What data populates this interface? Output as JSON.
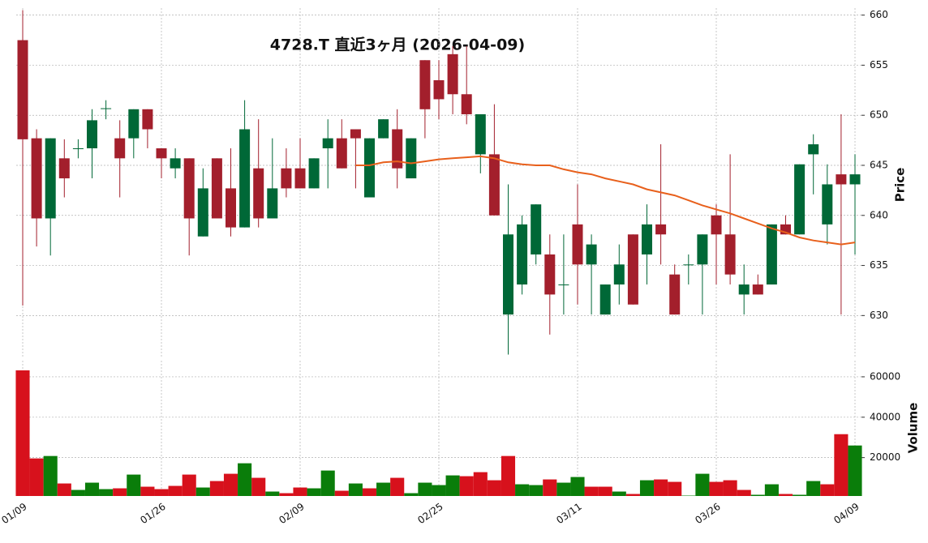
{
  "chart_data": {
    "type": "candlestick",
    "title": "4728.T  直近3ヶ月 (2026-04-09)",
    "ylabel": "Price",
    "categories": [
      "01/09",
      null,
      null,
      null,
      null,
      null,
      null,
      null,
      null,
      null,
      "01/26",
      null,
      null,
      null,
      null,
      null,
      null,
      null,
      null,
      null,
      "02/09",
      null,
      null,
      null,
      null,
      null,
      null,
      null,
      null,
      null,
      "02/25",
      null,
      null,
      null,
      null,
      null,
      null,
      null,
      null,
      null,
      "03/11",
      null,
      null,
      null,
      null,
      null,
      null,
      null,
      null,
      null,
      "03/26",
      null,
      null,
      null,
      null,
      null,
      null,
      null,
      null,
      null,
      "04/09"
    ],
    "open": [
      657.5,
      647.7,
      639.7,
      645.7,
      646.7,
      646.7,
      650.7,
      647.7,
      647.7,
      650.6,
      646.7,
      644.7,
      645.7,
      637.9,
      645.7,
      642.7,
      638.8,
      644.7,
      639.7,
      644.7,
      644.7,
      642.7,
      646.7,
      647.7,
      648.6,
      641.8,
      647.7,
      648.6,
      643.7,
      655.5,
      653.5,
      656.1,
      652.1,
      646.1,
      646.1,
      630.1,
      633.1,
      636.1,
      636.1,
      633.1,
      639.1,
      635.1,
      630.1,
      633.1,
      638.1,
      636.1,
      639.1,
      634.1,
      635.1,
      635.1,
      640.0,
      638.1,
      632.1,
      633.1,
      633.1,
      639.1,
      638.1,
      646.1,
      639.1,
      644.1,
      643.1
    ],
    "high": [
      660.5,
      648.6,
      647.7,
      647.6,
      647.6,
      650.6,
      651.5,
      649.5,
      650.6,
      650.6,
      646.7,
      646.7,
      645.7,
      644.7,
      645.7,
      646.7,
      651.5,
      649.6,
      647.7,
      646.7,
      647.7,
      645.7,
      649.6,
      649.6,
      648.6,
      647.7,
      649.6,
      650.6,
      647.7,
      655.5,
      655.5,
      656.9,
      656.9,
      650.1,
      651.1,
      643.1,
      640.0,
      641.1,
      638.1,
      638.1,
      643.1,
      638.1,
      633.1,
      637.1,
      638.1,
      641.1,
      647.1,
      635.1,
      636.1,
      638.1,
      641.1,
      646.1,
      635.1,
      634.1,
      639.1,
      640.0,
      645.1,
      648.1,
      645.1,
      650.1,
      646.1
    ],
    "low": [
      631.0,
      636.9,
      636.0,
      641.8,
      645.7,
      643.7,
      649.6,
      641.8,
      645.7,
      646.7,
      643.7,
      643.7,
      636.0,
      637.9,
      639.7,
      637.9,
      638.8,
      638.8,
      639.7,
      641.8,
      642.7,
      642.7,
      642.7,
      644.7,
      642.7,
      641.8,
      647.7,
      642.7,
      643.7,
      647.7,
      649.6,
      650.1,
      649.1,
      644.2,
      640.0,
      626.1,
      632.1,
      635.1,
      628.1,
      630.1,
      631.1,
      630.1,
      630.1,
      631.1,
      631.1,
      633.1,
      635.1,
      630.1,
      633.1,
      630.1,
      633.1,
      633.1,
      630.1,
      632.1,
      633.1,
      638.1,
      638.1,
      642.1,
      637.1,
      630.1,
      636.1
    ],
    "close": [
      647.6,
      639.7,
      647.7,
      643.7,
      646.7,
      649.5,
      650.7,
      645.7,
      650.6,
      648.6,
      645.7,
      645.7,
      639.7,
      642.7,
      639.7,
      638.8,
      648.6,
      639.7,
      642.7,
      642.7,
      642.7,
      645.7,
      647.7,
      644.7,
      647.7,
      647.7,
      649.6,
      644.7,
      647.7,
      650.6,
      651.6,
      652.1,
      650.1,
      650.1,
      640.0,
      638.1,
      639.1,
      641.1,
      632.1,
      633.1,
      635.1,
      637.1,
      633.1,
      635.1,
      631.1,
      639.1,
      638.1,
      630.1,
      635.1,
      638.1,
      638.1,
      634.1,
      633.1,
      632.1,
      639.1,
      638.1,
      645.1,
      647.1,
      643.1,
      643.1,
      644.1
    ],
    "up_color": "#006837",
    "down_color": "#a31f2c",
    "ylim": [
      625.9,
      660.7
    ],
    "yticks": [
      630,
      635,
      640,
      645,
      650,
      655,
      660
    ],
    "grid": true,
    "ma": {
      "color": "#e8601c",
      "values": [
        null,
        null,
        null,
        null,
        null,
        null,
        null,
        null,
        null,
        null,
        null,
        null,
        null,
        null,
        null,
        null,
        null,
        null,
        null,
        null,
        null,
        null,
        null,
        null,
        645.0,
        645.0,
        645.3,
        645.4,
        645.2,
        645.4,
        645.6,
        645.7,
        645.8,
        645.9,
        645.7,
        645.3,
        645.1,
        645.0,
        645.0,
        644.6,
        644.3,
        644.1,
        643.7,
        643.4,
        643.1,
        642.6,
        642.3,
        642.0,
        641.5,
        641.0,
        640.6,
        640.2,
        639.7,
        639.2,
        638.7,
        638.3,
        637.8,
        637.5,
        637.3,
        637.1,
        637.3
      ]
    },
    "volume": {
      "ylabel": "Volume",
      "values": [
        63200,
        19600,
        20800,
        7200,
        4000,
        7600,
        4400,
        4800,
        11600,
        5600,
        4400,
        6000,
        11600,
        5200,
        8400,
        12000,
        17200,
        10000,
        3200,
        2400,
        5200,
        4800,
        13600,
        3600,
        7200,
        4800,
        7600,
        10000,
        2400,
        7600,
        6400,
        11200,
        10800,
        12800,
        8800,
        20800,
        6800,
        6400,
        9200,
        7600,
        10400,
        5600,
        5600,
        3200,
        2000,
        8800,
        9200,
        8000,
        1200,
        12000,
        8000,
        8800,
        4000,
        1600,
        6800,
        2000,
        1600,
        8400,
        6800,
        31600,
        26000
      ],
      "colors": [
        "#d7111c",
        "#d7111c",
        "#0a7d0a",
        "#d7111c",
        "#0a7d0a",
        "#0a7d0a",
        "#0a7d0a",
        "#d7111c",
        "#0a7d0a",
        "#d7111c",
        "#d7111c",
        "#d7111c",
        "#d7111c",
        "#0a7d0a",
        "#d7111c",
        "#d7111c",
        "#0a7d0a",
        "#d7111c",
        "#0a7d0a",
        "#d7111c",
        "#d7111c",
        "#0a7d0a",
        "#0a7d0a",
        "#d7111c",
        "#0a7d0a",
        "#d7111c",
        "#0a7d0a",
        "#d7111c",
        "#0a7d0a",
        "#0a7d0a",
        "#0a7d0a",
        "#0a7d0a",
        "#d7111c",
        "#d7111c",
        "#d7111c",
        "#d7111c",
        "#0a7d0a",
        "#0a7d0a",
        "#d7111c",
        "#0a7d0a",
        "#0a7d0a",
        "#d7111c",
        "#d7111c",
        "#0a7d0a",
        "#d7111c",
        "#0a7d0a",
        "#d7111c",
        "#d7111c",
        "#0a7d0a",
        "#0a7d0a",
        "#d7111c",
        "#d7111c",
        "#d7111c",
        "#0a7d0a",
        "#0a7d0a",
        "#d7111c",
        "#0a7d0a",
        "#0a7d0a",
        "#d7111c",
        "#d7111c",
        "#0a7d0a"
      ],
      "ylim": [
        1000,
        68000
      ],
      "yticks": [
        20000,
        40000,
        60000
      ]
    }
  }
}
